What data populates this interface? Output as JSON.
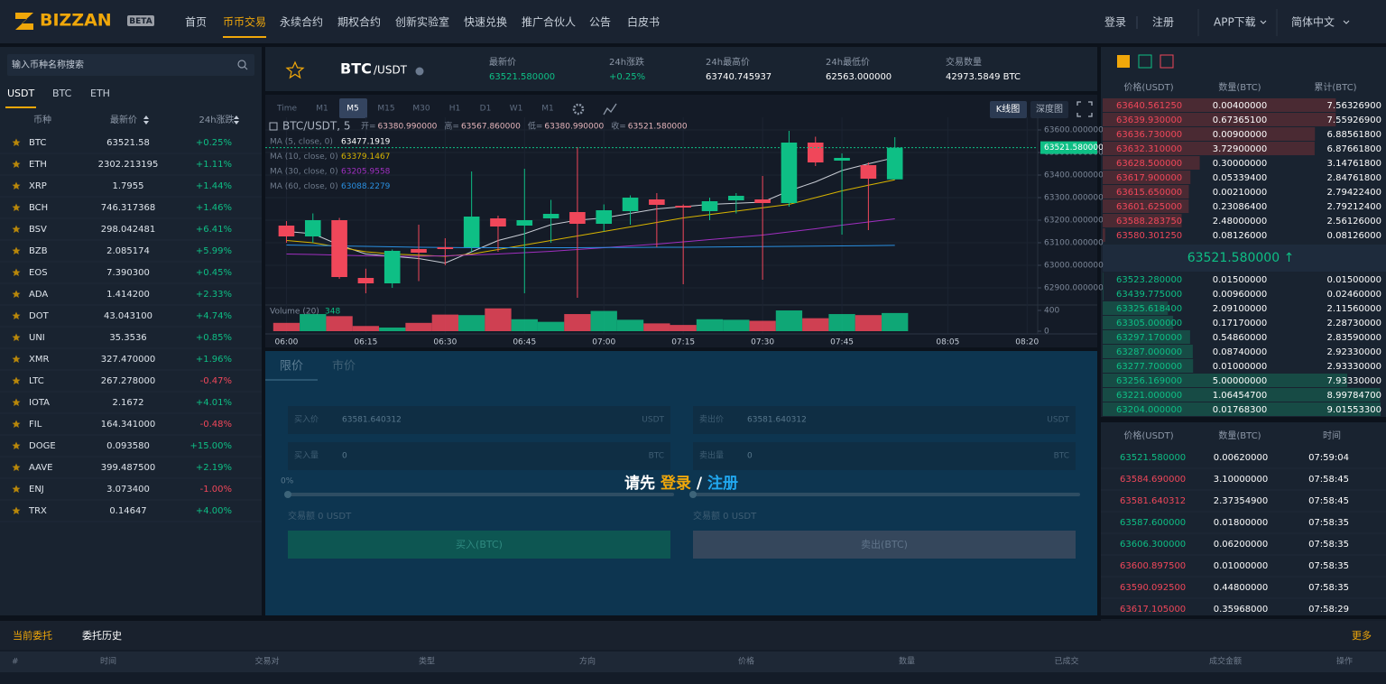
{
  "nav": {
    "logo": "BIZZAN",
    "badge": "BETA",
    "items": [
      "首页",
      "币币交易",
      "永续合约",
      "期权合约",
      "创新实验室",
      "快速兑换",
      "推广合伙人",
      "公告",
      "白皮书"
    ],
    "active": 1,
    "login": "登录",
    "register": "注册",
    "app": "APP下载",
    "lang": "简体中文"
  },
  "market": {
    "search_placeholder": "输入币种名称搜索",
    "tabs": [
      "USDT",
      "BTC",
      "ETH"
    ],
    "columns": [
      "币种",
      "最新价",
      "24h涨跌"
    ],
    "rows": [
      [
        "BTC",
        "63521.58",
        "+0.25%"
      ],
      [
        "ETH",
        "2302.213195",
        "+1.11%"
      ],
      [
        "XRP",
        "1.7955",
        "+1.44%"
      ],
      [
        "BCH",
        "746.317368",
        "+1.46%"
      ],
      [
        "BSV",
        "298.042481",
        "+6.41%"
      ],
      [
        "BZB",
        "2.085174",
        "+5.99%"
      ],
      [
        "EOS",
        "7.390300",
        "+0.45%"
      ],
      [
        "ADA",
        "1.414200",
        "+2.33%"
      ],
      [
        "DOT",
        "43.043100",
        "+4.74%"
      ],
      [
        "UNI",
        "35.3536",
        "+0.85%"
      ],
      [
        "XMR",
        "327.470000",
        "+1.96%"
      ],
      [
        "LTC",
        "267.278000",
        "-0.47%"
      ],
      [
        "IOTA",
        "2.1672",
        "+4.01%"
      ],
      [
        "FIL",
        "164.341000",
        "-0.48%"
      ],
      [
        "DOGE",
        "0.093580",
        "+15.00%"
      ],
      [
        "AAVE",
        "399.487500",
        "+2.19%"
      ],
      [
        "ENJ",
        "3.073400",
        "-1.00%"
      ],
      [
        "TRX",
        "0.14647",
        "+4.00%"
      ]
    ]
  },
  "ticker": {
    "symbol": "BTC",
    "quote": "/USDT",
    "stats": [
      {
        "label": "最新价",
        "value": "63521.580000"
      },
      {
        "label": "24h涨跌",
        "value": "+0.25%"
      },
      {
        "label": "24h最高价",
        "value": "63740.745937"
      },
      {
        "label": "24h最低价",
        "value": "62563.000000"
      },
      {
        "label": "交易数量",
        "value": "42973.5849 BTC"
      }
    ]
  },
  "kline": {
    "intervals": [
      "Time",
      "M1",
      "M5",
      "M15",
      "M30",
      "H1",
      "D1",
      "W1",
      "M1"
    ],
    "active_interval": 2,
    "views": [
      "K线图",
      "深度图"
    ],
    "legend": "BTC/USDT, 5",
    "ohlc": [
      {
        "label": "开=",
        "value": "63380.990000"
      },
      {
        "label": "高=",
        "value": "63567.860000"
      },
      {
        "label": "低=",
        "value": "63380.990000"
      },
      {
        "label": "收=",
        "value": "63521.580000"
      }
    ],
    "up_color": "#0ebf85",
    "down_color": "#f0475a",
    "xlim": [
      "05:56",
      "08:22"
    ],
    "xticks": [
      "06:00",
      "06:15",
      "06:30",
      "06:45",
      "07:00",
      "07:15",
      "07:30",
      "07:45",
      "08:05",
      "08:20"
    ],
    "ylim": [
      62824,
      63656
    ],
    "yticks": [
      {
        "value": 63600,
        "label": "63600.000000"
      },
      {
        "value": 63500,
        "label": "63500.000000"
      },
      {
        "value": 63400,
        "label": "63400.000000"
      },
      {
        "value": 63300,
        "label": "63300.000000"
      },
      {
        "value": 63200,
        "label": "63200.000000"
      },
      {
        "value": 63100,
        "label": "63100.000000"
      },
      {
        "value": 63000,
        "label": "63000.000000"
      },
      {
        "value": 62900,
        "label": "62900.000000"
      }
    ],
    "last_label": "63521.580000",
    "x": [
      "06:00",
      "06:05",
      "06:10",
      "06:15",
      "06:20",
      "06:25",
      "06:30",
      "06:35",
      "06:40",
      "06:45",
      "06:50",
      "06:55",
      "07:00",
      "07:05",
      "07:10",
      "07:15",
      "07:20",
      "07:25",
      "07:30",
      "07:35",
      "07:40",
      "07:45",
      "07:50",
      "07:55"
    ],
    "open": [
      63176,
      63128,
      63200,
      62944,
      62920,
      63072,
      63080,
      63080,
      63208,
      63176,
      63208,
      63236,
      63184,
      63240,
      63292,
      63264,
      63240,
      63288,
      63292,
      63276,
      63544,
      63464,
      63444,
      63380.99
    ],
    "high": [
      63196,
      63230,
      63210,
      62985,
      63070,
      63180,
      63120,
      63416,
      63220,
      63428,
      63290,
      63524,
      63270,
      63310,
      63320,
      63270,
      63300,
      63320,
      63396,
      63596,
      63570,
      63496,
      63456,
      63567.86
    ],
    "low": [
      63100,
      63100,
      62940,
      62876,
      62900,
      62930,
      63000,
      63060,
      63060,
      62876,
      63100,
      62856,
      63150,
      63180,
      63080,
      62916,
      63200,
      63230,
      62936,
      63260,
      63440,
      63136,
      63156,
      63380.99
    ],
    "close": [
      63128,
      63200,
      62948,
      62920,
      63064,
      63056,
      63072,
      63216,
      63172,
      63200,
      63228,
      63184,
      63244,
      63300,
      63268,
      63256,
      63284,
      63308,
      63276,
      63544,
      63456,
      63476,
      63384,
      63521.58
    ],
    "ma": [
      {
        "name": "MA (5, close, 0)",
        "value": "63477.1919",
        "color": "#c8ccd4",
        "values": [
          63150,
          63140,
          63090,
          63050,
          63040,
          63030,
          63010,
          63060,
          63110,
          63140,
          63180,
          63200,
          63210,
          63230,
          63250,
          63260,
          63270,
          63275,
          63280,
          63330,
          63370,
          63420,
          63450,
          63477.1919
        ]
      },
      {
        "name": "MA (10, close, 0)",
        "value": "63379.1467",
        "color": "#d8b400",
        "values": [
          63110,
          63100,
          63080,
          63060,
          63050,
          63045,
          63040,
          63050,
          63070,
          63090,
          63110,
          63130,
          63150,
          63170,
          63190,
          63210,
          63225,
          63240,
          63255,
          63270,
          63300,
          63330,
          63355,
          63379.1467
        ]
      },
      {
        "name": "MA (30, close, 0)",
        "value": "63205.9558",
        "color": "#a02fc0",
        "values": [
          63050,
          63048,
          63045,
          63042,
          63040,
          63040,
          63042,
          63046,
          63050,
          63056,
          63062,
          63070,
          63078,
          63086,
          63094,
          63104,
          63114,
          63124,
          63134,
          63148,
          63162,
          63178,
          63192,
          63205.9558
        ]
      },
      {
        "name": "MA (60, close, 0)",
        "value": "63088.2279",
        "color": "#2a8fe0",
        "values": [
          63090,
          63088,
          63086,
          63084,
          63082,
          63080,
          63079,
          63078,
          63078,
          63078,
          63078,
          63078,
          63079,
          63079,
          63080,
          63080,
          63081,
          63082,
          63083,
          63084,
          63085,
          63086,
          63087,
          63088.2279
        ]
      }
    ],
    "volume": {
      "name": "Volume (20)",
      "last": "348",
      "ylim": [
        0,
        470
      ],
      "yticks": [
        0,
        400
      ],
      "values": [
        160,
        330,
        290,
        100,
        70,
        160,
        320,
        310,
        440,
        230,
        180,
        330,
        390,
        220,
        150,
        120,
        230,
        220,
        200,
        400,
        250,
        330,
        310,
        350
      ]
    }
  },
  "trade_form": {
    "tabs": [
      "限价",
      "市价"
    ],
    "buy": {
      "price_label": "买入价",
      "price": "63581.640312",
      "price_unit": "USDT",
      "amount_label": "买入量",
      "amount": "0",
      "amount_unit": "BTC",
      "percent": "0%",
      "total": "交易额 0 USDT",
      "button": "买入(BTC)"
    },
    "sell": {
      "price_label": "卖出价",
      "price": "63581.640312",
      "price_unit": "USDT",
      "amount_label": "卖出量",
      "amount": "0",
      "amount_unit": "BTC",
      "total": "交易额 0 USDT",
      "button": "卖出(BTC)"
    },
    "overlay": {
      "prefix": "请先 ",
      "login": "登录",
      "sep": " / ",
      "register": "注册"
    }
  },
  "order_book": {
    "columns": [
      "价格(USDT)",
      "数量(BTC)",
      "累计(BTC)"
    ],
    "asks": [
      [
        "63640.561250",
        "0.00400000",
        "7.56326900"
      ],
      [
        "63639.930000",
        "0.67365100",
        "7.55926900"
      ],
      [
        "63636.730000",
        "0.00900000",
        "6.88561800"
      ],
      [
        "63632.310000",
        "3.72900000",
        "6.87661800"
      ],
      [
        "63628.500000",
        "0.30000000",
        "3.14761800"
      ],
      [
        "63617.900000",
        "0.05339400",
        "2.84761800"
      ],
      [
        "63615.650000",
        "0.00210000",
        "2.79422400"
      ],
      [
        "63601.625000",
        "0.23086400",
        "2.79212400"
      ],
      [
        "63588.283750",
        "2.48000000",
        "2.56126000"
      ],
      [
        "63580.301250",
        "0.08126000",
        "0.08126000"
      ]
    ],
    "mid": "63521.580000 ↑",
    "bids": [
      [
        "63523.280000",
        "0.01500000",
        "0.01500000"
      ],
      [
        "63439.775000",
        "0.00960000",
        "0.02460000"
      ],
      [
        "63325.618400",
        "2.09100000",
        "2.11560000"
      ],
      [
        "63305.000000",
        "0.17170000",
        "2.28730000"
      ],
      [
        "63297.170000",
        "0.54860000",
        "2.83590000"
      ],
      [
        "63287.000000",
        "0.08740000",
        "2.92330000"
      ],
      [
        "63277.700000",
        "0.01000000",
        "2.93330000"
      ],
      [
        "63256.169000",
        "5.00000000",
        "7.93330000"
      ],
      [
        "63221.000000",
        "1.06454700",
        "8.99784700"
      ],
      [
        "63204.000000",
        "0.01768300",
        "9.01553300"
      ]
    ]
  },
  "trades": {
    "columns": [
      "价格(USDT)",
      "数量(BTC)",
      "时间"
    ],
    "rows": [
      {
        "price": "63521.580000",
        "amount": "0.00620000",
        "time": "07:59:04",
        "side": "buy"
      },
      {
        "price": "63584.690000",
        "amount": "3.10000000",
        "time": "07:58:45",
        "side": "sell"
      },
      {
        "price": "63581.640312",
        "amount": "2.37354900",
        "time": "07:58:45",
        "side": "sell"
      },
      {
        "price": "63587.600000",
        "amount": "0.01800000",
        "time": "07:58:35",
        "side": "buy"
      },
      {
        "price": "63606.300000",
        "amount": "0.06200000",
        "time": "07:58:35",
        "side": "buy"
      },
      {
        "price": "63600.897500",
        "amount": "0.01000000",
        "time": "07:58:35",
        "side": "sell"
      },
      {
        "price": "63590.092500",
        "amount": "0.44800000",
        "time": "07:58:35",
        "side": "sell"
      },
      {
        "price": "63617.105000",
        "amount": "0.35968000",
        "time": "07:58:29",
        "side": "sell"
      }
    ]
  },
  "orders": {
    "tabs": [
      "当前委托",
      "委托历史"
    ],
    "more": "更多",
    "columns": [
      "#",
      "时间",
      "交易对",
      "类型",
      "方向",
      "价格",
      "数量",
      "已成交",
      "成交金额",
      "操作"
    ]
  }
}
